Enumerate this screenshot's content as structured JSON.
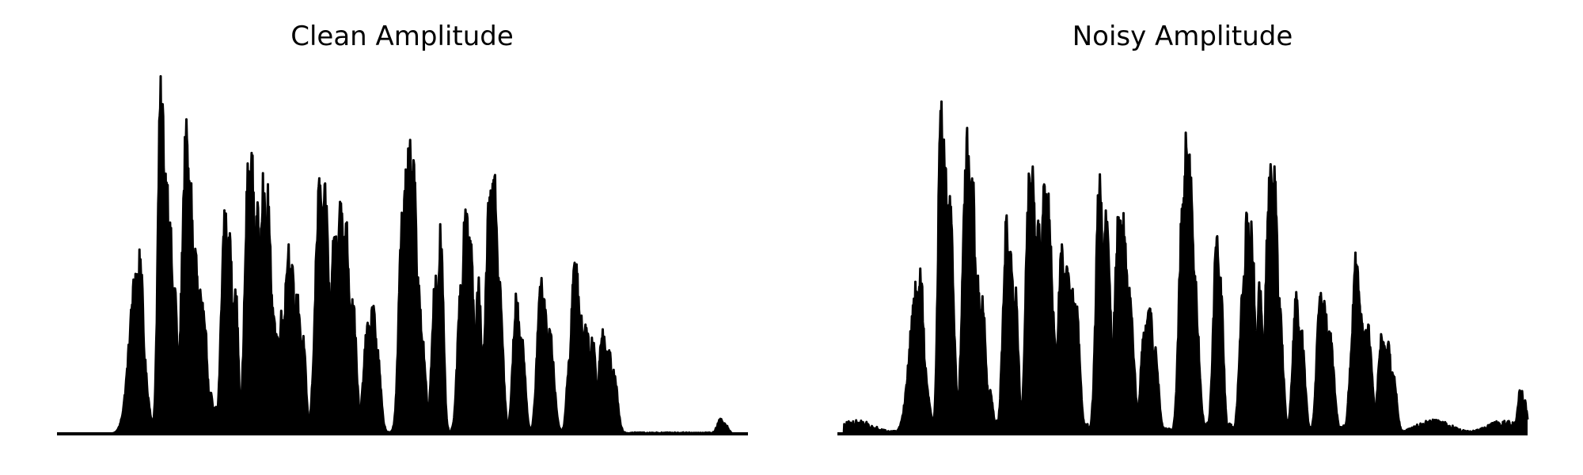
{
  "chart_data": [
    {
      "type": "line",
      "title": "Clean Amplitude",
      "xlabel": "",
      "ylabel": "",
      "axes_visible": false,
      "ylim": [
        0,
        1.0
      ],
      "color": "#000000",
      "peaks": [
        [
          0.115,
          0.01,
          0.48
        ],
        [
          0.12,
          0.005,
          0.53
        ],
        [
          0.126,
          0.005,
          0.1
        ],
        [
          0.15,
          0.004,
          1.0
        ],
        [
          0.153,
          0.004,
          0.95
        ],
        [
          0.158,
          0.006,
          0.77
        ],
        [
          0.164,
          0.004,
          0.6
        ],
        [
          0.17,
          0.004,
          0.45
        ],
        [
          0.187,
          0.006,
          0.88
        ],
        [
          0.193,
          0.005,
          0.75
        ],
        [
          0.2,
          0.005,
          0.55
        ],
        [
          0.206,
          0.006,
          0.42
        ],
        [
          0.212,
          0.005,
          0.38
        ],
        [
          0.222,
          0.004,
          0.12
        ],
        [
          0.23,
          0.004,
          0.08
        ],
        [
          0.243,
          0.005,
          0.65
        ],
        [
          0.25,
          0.004,
          0.58
        ],
        [
          0.258,
          0.004,
          0.45
        ],
        [
          0.277,
          0.005,
          0.78
        ],
        [
          0.282,
          0.005,
          0.8
        ],
        [
          0.29,
          0.004,
          0.65
        ],
        [
          0.298,
          0.005,
          0.75
        ],
        [
          0.305,
          0.005,
          0.7
        ],
        [
          0.312,
          0.005,
          0.4
        ],
        [
          0.318,
          0.005,
          0.3
        ],
        [
          0.325,
          0.005,
          0.35
        ],
        [
          0.335,
          0.006,
          0.55
        ],
        [
          0.34,
          0.005,
          0.48
        ],
        [
          0.348,
          0.006,
          0.4
        ],
        [
          0.356,
          0.004,
          0.28
        ],
        [
          0.38,
          0.006,
          0.73
        ],
        [
          0.388,
          0.006,
          0.7
        ],
        [
          0.402,
          0.006,
          0.6
        ],
        [
          0.41,
          0.006,
          0.68
        ],
        [
          0.418,
          0.006,
          0.62
        ],
        [
          0.428,
          0.005,
          0.4
        ],
        [
          0.45,
          0.006,
          0.32
        ],
        [
          0.457,
          0.006,
          0.38
        ],
        [
          0.463,
          0.005,
          0.25
        ],
        [
          0.5,
          0.005,
          0.66
        ],
        [
          0.505,
          0.005,
          0.75
        ],
        [
          0.51,
          0.006,
          0.84
        ],
        [
          0.516,
          0.005,
          0.83
        ],
        [
          0.522,
          0.006,
          0.45
        ],
        [
          0.528,
          0.005,
          0.3
        ],
        [
          0.548,
          0.005,
          0.47
        ],
        [
          0.555,
          0.004,
          0.6
        ],
        [
          0.585,
          0.005,
          0.45
        ],
        [
          0.592,
          0.006,
          0.67
        ],
        [
          0.598,
          0.005,
          0.6
        ],
        [
          0.61,
          0.004,
          0.44
        ],
        [
          0.617,
          0.005,
          0.25
        ],
        [
          0.627,
          0.006,
          0.75
        ],
        [
          0.633,
          0.005,
          0.8
        ],
        [
          0.64,
          0.005,
          0.45
        ],
        [
          0.665,
          0.005,
          0.4
        ],
        [
          0.672,
          0.005,
          0.3
        ],
        [
          0.7,
          0.005,
          0.45
        ],
        [
          0.706,
          0.005,
          0.39
        ],
        [
          0.713,
          0.006,
          0.3
        ],
        [
          0.742,
          0.004,
          0.23
        ],
        [
          0.75,
          0.006,
          0.53
        ],
        [
          0.758,
          0.005,
          0.35
        ],
        [
          0.766,
          0.006,
          0.33
        ],
        [
          0.775,
          0.005,
          0.28
        ],
        [
          0.79,
          0.006,
          0.3
        ],
        [
          0.798,
          0.006,
          0.25
        ],
        [
          0.806,
          0.005,
          0.18
        ],
        [
          0.96,
          0.004,
          0.045
        ],
        [
          0.966,
          0.004,
          0.03
        ]
      ]
    },
    {
      "type": "line",
      "title": "Noisy Amplitude",
      "xlabel": "",
      "ylabel": "",
      "axes_visible": false,
      "ylim": [
        0,
        1.0
      ],
      "color": "#000000",
      "peaks": [
        [
          0.115,
          0.01,
          0.44
        ],
        [
          0.12,
          0.005,
          0.5
        ],
        [
          0.13,
          0.005,
          0.12
        ],
        [
          0.15,
          0.004,
          1.0
        ],
        [
          0.155,
          0.005,
          0.88
        ],
        [
          0.162,
          0.006,
          0.7
        ],
        [
          0.188,
          0.006,
          0.87
        ],
        [
          0.195,
          0.005,
          0.78
        ],
        [
          0.203,
          0.006,
          0.45
        ],
        [
          0.21,
          0.005,
          0.4
        ],
        [
          0.22,
          0.005,
          0.13
        ],
        [
          0.245,
          0.005,
          0.62
        ],
        [
          0.252,
          0.004,
          0.55
        ],
        [
          0.258,
          0.004,
          0.42
        ],
        [
          0.278,
          0.005,
          0.75
        ],
        [
          0.283,
          0.005,
          0.78
        ],
        [
          0.291,
          0.004,
          0.62
        ],
        [
          0.3,
          0.005,
          0.75
        ],
        [
          0.306,
          0.005,
          0.68
        ],
        [
          0.312,
          0.005,
          0.35
        ],
        [
          0.325,
          0.005,
          0.55
        ],
        [
          0.332,
          0.006,
          0.52
        ],
        [
          0.34,
          0.006,
          0.45
        ],
        [
          0.346,
          0.005,
          0.38
        ],
        [
          0.38,
          0.005,
          0.78
        ],
        [
          0.39,
          0.005,
          0.7
        ],
        [
          0.408,
          0.006,
          0.67
        ],
        [
          0.415,
          0.006,
          0.62
        ],
        [
          0.423,
          0.006,
          0.42
        ],
        [
          0.445,
          0.005,
          0.33
        ],
        [
          0.452,
          0.006,
          0.38
        ],
        [
          0.46,
          0.005,
          0.25
        ],
        [
          0.5,
          0.005,
          0.68
        ],
        [
          0.505,
          0.005,
          0.86
        ],
        [
          0.51,
          0.006,
          0.8
        ],
        [
          0.517,
          0.006,
          0.47
        ],
        [
          0.55,
          0.005,
          0.6
        ],
        [
          0.555,
          0.004,
          0.45
        ],
        [
          0.588,
          0.005,
          0.45
        ],
        [
          0.594,
          0.005,
          0.66
        ],
        [
          0.6,
          0.005,
          0.6
        ],
        [
          0.612,
          0.004,
          0.45
        ],
        [
          0.627,
          0.006,
          0.78
        ],
        [
          0.633,
          0.005,
          0.82
        ],
        [
          0.64,
          0.005,
          0.4
        ],
        [
          0.665,
          0.005,
          0.4
        ],
        [
          0.672,
          0.005,
          0.3
        ],
        [
          0.7,
          0.005,
          0.43
        ],
        [
          0.706,
          0.005,
          0.39
        ],
        [
          0.713,
          0.006,
          0.3
        ],
        [
          0.745,
          0.004,
          0.23
        ],
        [
          0.752,
          0.006,
          0.53
        ],
        [
          0.76,
          0.005,
          0.35
        ],
        [
          0.768,
          0.006,
          0.33
        ],
        [
          0.79,
          0.006,
          0.3
        ],
        [
          0.797,
          0.006,
          0.27
        ],
        [
          0.805,
          0.005,
          0.18
        ],
        [
          0.99,
          0.004,
          0.14
        ],
        [
          0.995,
          0.004,
          0.1
        ]
      ],
      "noise_floor": 0.04
    }
  ]
}
